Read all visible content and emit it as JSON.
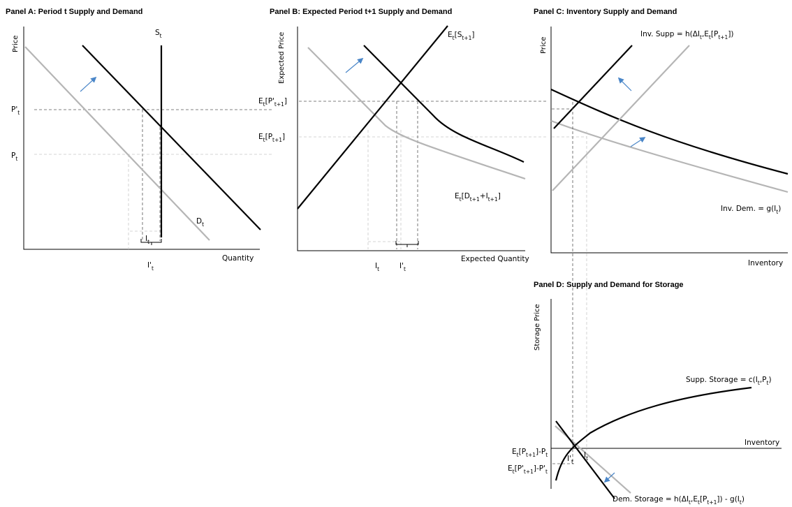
{
  "panels": {
    "a": {
      "title": "Panel A: Period t Supply and Demand",
      "ylabel": "Price",
      "xlabel": "Quantity",
      "supply": {
        "base": "S",
        "sub": "t"
      },
      "demand": {
        "base": "D",
        "sub": "t"
      },
      "price_new": {
        "base": "P'",
        "sub": "t"
      },
      "price_old": {
        "base": "P",
        "sub": "t"
      },
      "inv_old": {
        "base": "I",
        "sub": "t"
      },
      "inv_new": {
        "base": "I'",
        "sub": "t"
      }
    },
    "b": {
      "title": "Panel B: Expected Period t+1 Supply and Demand",
      "ylabel": "Expected Price",
      "xlabel": "Expected Quantity",
      "supply": {
        "pre": "E",
        "sub1": "t",
        "open": "[S",
        "sub2": "t+1",
        "close": "]"
      },
      "demand": {
        "pre": "E",
        "sub1": "t",
        "open": "[D",
        "sub2": "t+1",
        "mid": "+I",
        "sub3": "t+1",
        "close": "]"
      },
      "price_new": {
        "pre": "E",
        "sub1": "t",
        "open": "[P'",
        "sub2": "t+1",
        "close": "]"
      },
      "price_old": {
        "pre": "E",
        "sub1": "t",
        "open": "[P",
        "sub2": "t+1",
        "close": "]"
      },
      "inv_old": {
        "base": "I",
        "sub": "t"
      },
      "inv_new": {
        "base": "I'",
        "sub": "t"
      }
    },
    "c": {
      "title": "Panel C: Inventory Supply and Demand",
      "ylabel": "Price",
      "xlabel": "Inventory",
      "supply_label": {
        "pre": "Inv. Supp = h(ΔI",
        "sub1": "t",
        "mid": ",E",
        "sub2": "t",
        "open": "[P",
        "sub3": "t+1",
        "close": "])"
      },
      "demand_label": {
        "pre": "Inv. Dem. = g(I",
        "sub": "t",
        "close": ")"
      }
    },
    "d": {
      "title": "Panel D: Supply and Demand for Storage",
      "ylabel": "Storage Price",
      "xlabel": "Inventory",
      "supply_label": {
        "pre": "Supp. Storage = c(I",
        "sub1": "t",
        "mid": ",P",
        "sub2": "t",
        "close": ")"
      },
      "demand_label": {
        "pre": "Dem. Storage = h(ΔI",
        "sub1": "t",
        "mid": ",E",
        "sub2": "t",
        "open": "[P",
        "sub3": "t+1",
        "rest": "]) - g(I",
        "sub4": "t",
        "close": ")"
      },
      "price_old": {
        "pre": "E",
        "sub1": "t",
        "open": "[P",
        "sub2": "t+1",
        "mid": "]-P",
        "sub3": "t"
      },
      "price_new": {
        "pre": "E",
        "sub1": "t",
        "open": "[P'",
        "sub2": "t+1",
        "mid": "]-P'",
        "sub3": "t"
      },
      "inv_new": {
        "base": "I'",
        "sub": "t"
      },
      "inv_old": {
        "base": "I",
        "sub": "t"
      }
    }
  },
  "colors": {
    "new_curve": "#000000",
    "old_curve": "#b5b5b5",
    "shift_arrow": "#4a86c8"
  }
}
